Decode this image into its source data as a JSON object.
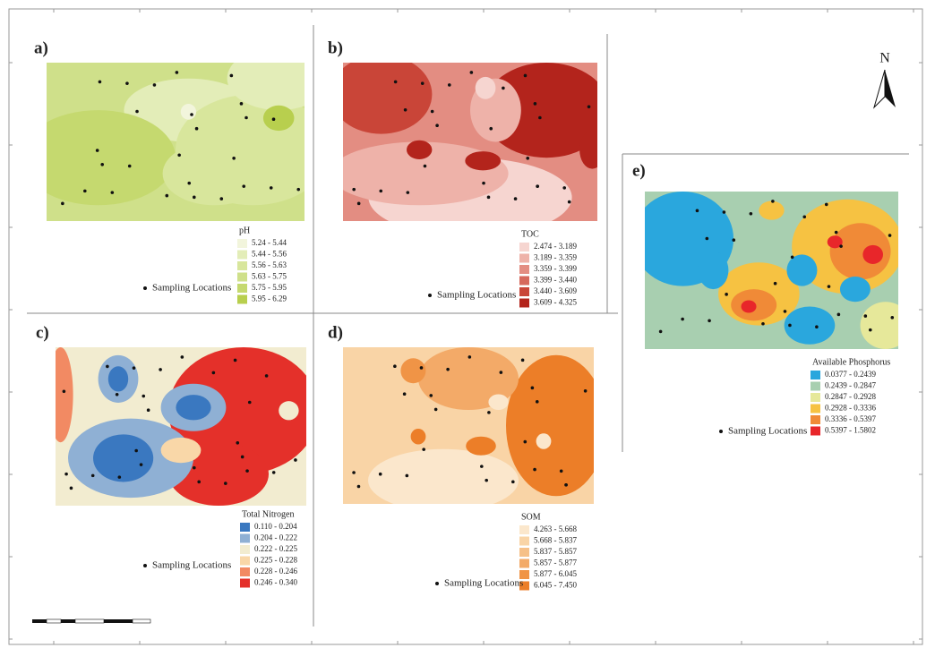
{
  "north": "N",
  "panels": [
    {
      "label": "a)",
      "legend_title": "pH",
      "sampling": "Sampling Locations",
      "classes": [
        {
          "label": "5.24 - 5.44",
          "color": "#f2f5dc"
        },
        {
          "label": "5.44 - 5.56",
          "color": "#e3edb8"
        },
        {
          "label": "5.56 - 5.63",
          "color": "#d8e69c"
        },
        {
          "label": "5.63 - 5.75",
          "color": "#cfe08a"
        },
        {
          "label": "5.75 - 5.95",
          "color": "#c5d96f"
        },
        {
          "label": "5.95 - 6.29",
          "color": "#b8cf4e"
        }
      ]
    },
    {
      "label": "b)",
      "legend_title": "TOC",
      "sampling": "Sampling Locations",
      "classes": [
        {
          "label": "2.474 - 3.189",
          "color": "#f6d5d0"
        },
        {
          "label": "3.189 - 3.359",
          "color": "#eeb2a9"
        },
        {
          "label": "3.359 - 3.399",
          "color": "#e38d82"
        },
        {
          "label": "3.399 - 3.440",
          "color": "#d6685c"
        },
        {
          "label": "3.440 - 3.609",
          "color": "#c94538"
        },
        {
          "label": "3.609 - 4.325",
          "color": "#b3241c"
        }
      ]
    },
    {
      "label": "c)",
      "legend_title": "Total Nitrogen",
      "sampling": "Sampling Locations",
      "classes": [
        {
          "label": "0.110 - 0.204",
          "color": "#3a78c0"
        },
        {
          "label": "0.204 - 0.222",
          "color": "#8fb0d4"
        },
        {
          "label": "0.222 - 0.225",
          "color": "#f2ecd0"
        },
        {
          "label": "0.225 - 0.228",
          "color": "#f9d7a8"
        },
        {
          "label": "0.228 - 0.246",
          "color": "#f28a63"
        },
        {
          "label": "0.246 - 0.340",
          "color": "#e4302a"
        }
      ]
    },
    {
      "label": "d)",
      "legend_title": "SOM",
      "sampling": "Sampling Locations",
      "classes": [
        {
          "label": "4.263 - 5.668",
          "color": "#fbe7cc"
        },
        {
          "label": "5.668 - 5.837",
          "color": "#f9d4a6"
        },
        {
          "label": "5.837 - 5.857",
          "color": "#f6c088"
        },
        {
          "label": "5.857 - 5.877",
          "color": "#f3aa68"
        },
        {
          "label": "5.877 - 6.045",
          "color": "#f09446"
        },
        {
          "label": "6.045 - 7.450",
          "color": "#ec7e28"
        }
      ]
    },
    {
      "label": "e)",
      "legend_title": "Available Phosphorus",
      "sampling": "Sampling Locations",
      "classes": [
        {
          "label": "0.0377 - 0.2439",
          "color": "#2aa7dd"
        },
        {
          "label": "0.2439 - 0.2847",
          "color": "#a8cfb0"
        },
        {
          "label": "0.2847 - 0.2928",
          "color": "#e6e89a"
        },
        {
          "label": "0.2928 - 0.3336",
          "color": "#f6c242"
        },
        {
          "label": "0.3336 - 0.5397",
          "color": "#f08a37"
        },
        {
          "label": "0.5397 - 1.5802",
          "color": "#e8262a"
        }
      ]
    }
  ]
}
